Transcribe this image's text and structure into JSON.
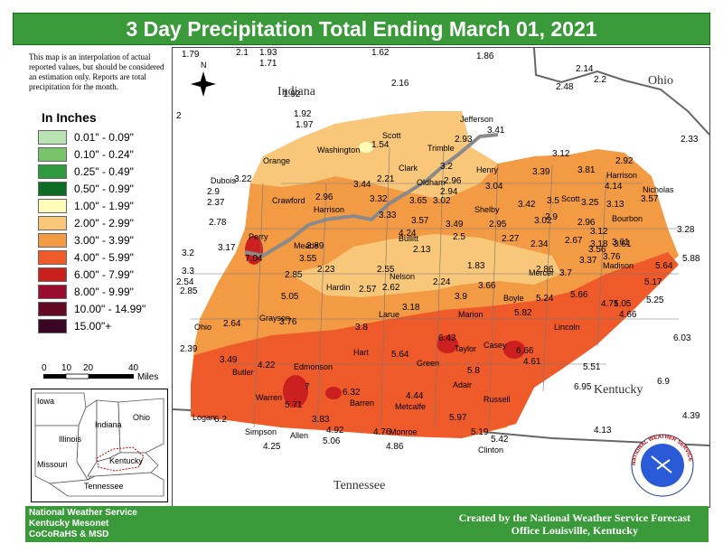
{
  "title": "3 Day Precipitation Total Ending March 01, 2021",
  "disclaimer": "This map is an interpolation of actual reported values, but should be considered an estimation only. Reports are total precipitation for the month.",
  "legend": {
    "title": "In Inches",
    "items": [
      {
        "label": "0.01\" - 0.09\"",
        "color": "#b9e3b3"
      },
      {
        "label": "0.10\" - 0.24\"",
        "color": "#79c46b"
      },
      {
        "label": "0.25\" - 0.49\"",
        "color": "#2f9a3f"
      },
      {
        "label": "0.50\" - 0.99\"",
        "color": "#0d6b24"
      },
      {
        "label": "1.00\" - 1.99\"",
        "color": "#fffbb8"
      },
      {
        "label": "2.00\" - 2.99\"",
        "color": "#f8c77a"
      },
      {
        "label": "3.00\" - 3.99\"",
        "color": "#f39a45"
      },
      {
        "label": "4.00\" - 5.99\"",
        "color": "#ef5a2a"
      },
      {
        "label": "6.00\" - 7.99\"",
        "color": "#cc1f1f"
      },
      {
        "label": "8.00\" - 9.99\"",
        "color": "#9a0c2e"
      },
      {
        "label": "10.00\" - 14.99\"",
        "color": "#640a24"
      },
      {
        "label": "15.00\"+",
        "color": "#3b0524"
      }
    ]
  },
  "scale": {
    "ticks": [
      "0",
      "10",
      "20",
      "40"
    ],
    "unit": "Miles"
  },
  "north_label": "N",
  "states": {
    "indiana": "Indiana",
    "ohio": "Ohio",
    "kentucky": "Kentucky",
    "tennessee": "Tennessee"
  },
  "inset": {
    "iowa": "Iowa",
    "illinois": "Illinois",
    "indiana": "Indiana",
    "ohio": "Ohio",
    "missouri": "Missouri",
    "kentucky": "Kentucky",
    "tennessee": "Tennessee"
  },
  "counties": [
    "Jefferson",
    "Scott",
    "Washington",
    "Trimble",
    "Orange",
    "Clark",
    "Henry",
    "Harrison",
    "Oldham",
    "Dubois",
    "Crawford",
    "Harrison",
    "Shelby",
    "Scott",
    "Nicholas",
    "Bourbon",
    "Perry",
    "Meade",
    "Bullitt",
    "Hardin",
    "Nelson",
    "Mercer",
    "Madison",
    "Ohio",
    "Grayson",
    "Larue",
    "Marion",
    "Boyle",
    "Lincoln",
    "Butler",
    "Edmonson",
    "Hart",
    "Taylor",
    "Casey",
    "Green",
    "Adair",
    "Warren",
    "Barren",
    "Metcalfe",
    "Russell",
    "Logan",
    "Simpson",
    "Allen",
    "Monroe",
    "Clinton"
  ],
  "values": [
    "1.79",
    "2.1",
    "1.93",
    "1.71",
    "1.62",
    "1.86",
    "2.14",
    "2.48",
    "2.2",
    "2.33",
    "1.92",
    "2.16",
    "2",
    "1.92",
    "1.97",
    "2.93",
    "3.41",
    "3.12",
    "1.54",
    "3.2",
    "3.39",
    "3.81",
    "2.92",
    "2.21",
    "2.96",
    "3.04",
    "4.14",
    "3.22",
    "3.44",
    "2.94",
    "3.57",
    "2.9",
    "2.37",
    "2.96",
    "3.32",
    "3.65",
    "3.02",
    "3.42",
    "3.5",
    "3.25",
    "3.13",
    "3.33",
    "3.57",
    "2.9",
    "3.02",
    "2.96",
    "2.78",
    "4.24",
    "3.49",
    "2.95",
    "2.67",
    "3.12",
    "3.28",
    "3.61",
    "3.89",
    "2.5",
    "2.27",
    "2.34",
    "3.18",
    "3.2",
    "3.17",
    "7.04",
    "3.55",
    "2.23",
    "2.13",
    "3.56",
    "3.61",
    "3.3",
    "2.54",
    "2.85",
    "2.55",
    "2.24",
    "1.83",
    "2.86",
    "3.7",
    "3.37",
    "3.76",
    "5.64",
    "5.88",
    "2.85",
    "2.57",
    "2.62",
    "3.66",
    "5.17",
    "5.05",
    "5.24",
    "5.66",
    "4.71",
    "5.05",
    "5.25",
    "3.9",
    "3.18",
    "4.66",
    "2.64",
    "3.76",
    "3.8",
    "5.82",
    "6.03",
    "2.39",
    "6.43",
    "5.64",
    "6.66",
    "4.22",
    "3.49",
    "4.61",
    "5.51",
    "7",
    "6.32",
    "5.8",
    "6.95",
    "6.9",
    "5.71",
    "4.44",
    "6.2",
    "3.83",
    "5.97",
    "4.39",
    "4.92",
    "5.19",
    "4.13",
    "4.25",
    "5.06",
    "4.76",
    "4.86",
    "5.42"
  ],
  "footer": {
    "left": [
      "National Weather Service",
      "Kentucky Mesonet",
      "CoCoRaHS & MSD"
    ],
    "right": [
      "Created by the National Weather Service Forecast",
      "Office Louisville, Kentucky"
    ]
  },
  "logo_text": "NATIONAL WEATHER SERVICE"
}
